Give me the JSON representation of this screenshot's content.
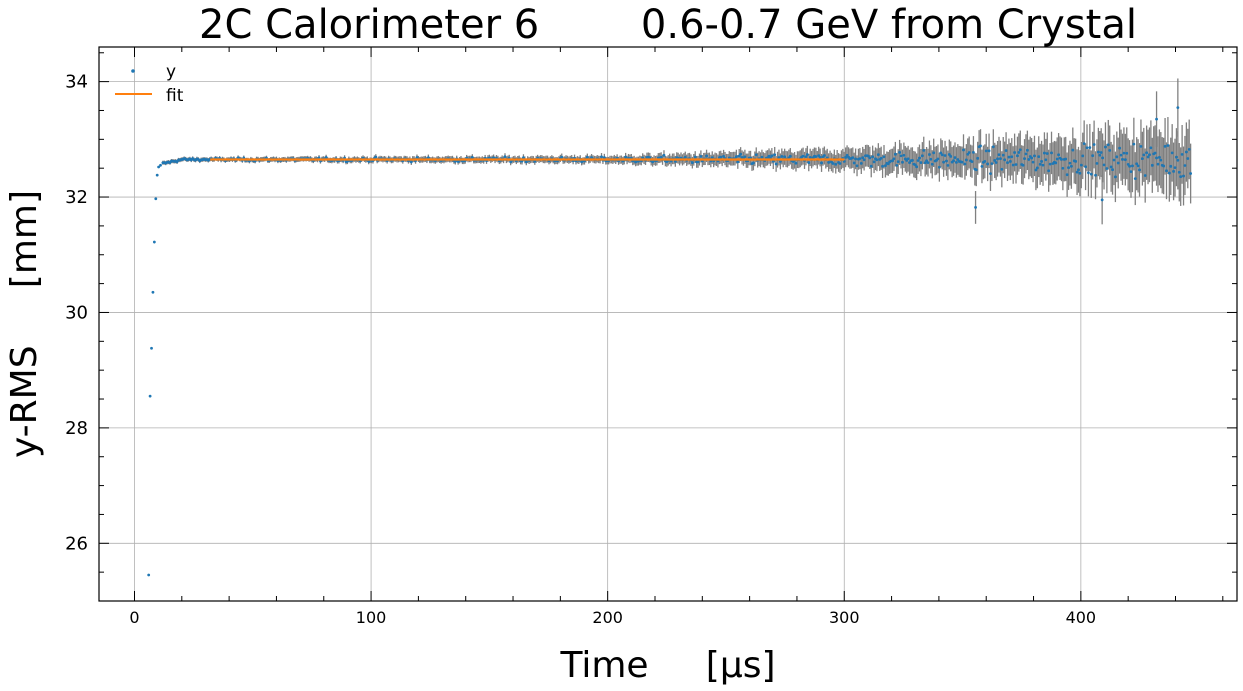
{
  "chart_data": {
    "type": "scatter",
    "title": "2C Calorimeter 6        0.6-0.7 GeV from Crystal",
    "xlabel": "Time     [μs]",
    "ylabel": "y-RMS     [mm]",
    "xlim": [
      -15,
      466
    ],
    "ylim": [
      25.0,
      34.6
    ],
    "x_ticks": [
      0,
      100,
      200,
      300,
      400
    ],
    "y_ticks": [
      26,
      28,
      30,
      32,
      34
    ],
    "grid": true,
    "legend_position": "top-left",
    "legend": [
      "y",
      "fit"
    ],
    "series": [
      {
        "name": "y",
        "kind": "scatter-with-errorbars",
        "early_points": [
          {
            "x": 6.0,
            "y": 25.45
          },
          {
            "x": 6.6,
            "y": 28.55
          },
          {
            "x": 7.2,
            "y": 29.38
          },
          {
            "x": 7.8,
            "y": 30.35
          },
          {
            "x": 8.4,
            "y": 31.22
          },
          {
            "x": 9.0,
            "y": 31.97
          },
          {
            "x": 9.6,
            "y": 32.38
          },
          {
            "x": 10.2,
            "y": 32.52
          },
          {
            "x": 11.0,
            "y": 32.55
          }
        ],
        "trend": {
          "x_start": 12,
          "x_end": 447,
          "x_step": 0.6,
          "y_level": 32.65
        },
        "outliers": [
          {
            "x": 355.5,
            "y": 31.82
          },
          {
            "x": 409.0,
            "y": 31.95
          },
          {
            "x": 441.0,
            "y": 33.55
          },
          {
            "x": 432.0,
            "y": 33.35
          }
        ]
      },
      {
        "name": "fit",
        "kind": "line",
        "x": [
          32,
          300
        ],
        "y": [
          32.65,
          32.65
        ]
      }
    ]
  },
  "colors": {
    "points": "#1f77b4",
    "errorbars": "#808080",
    "fit": "#ff7f0e",
    "grid": "#b0b0b0"
  }
}
